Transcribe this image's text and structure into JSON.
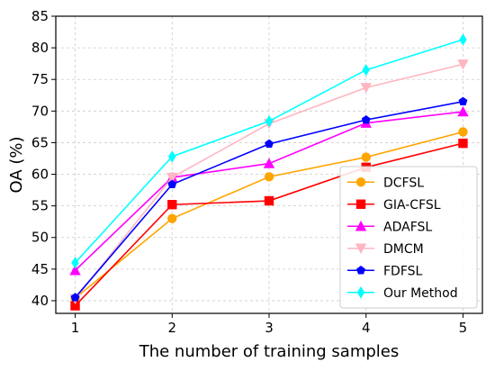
{
  "chart_data": {
    "type": "line",
    "title": "",
    "xlabel": "The number of training samples",
    "ylabel": "OA (%)",
    "x": [
      1,
      2,
      3,
      4,
      5
    ],
    "xticks": [
      "1",
      "2",
      "3",
      "4",
      "5"
    ],
    "yticks": [
      "40",
      "45",
      "50",
      "55",
      "60",
      "65",
      "70",
      "75",
      "80",
      "85"
    ],
    "xlim": [
      0.8,
      5.2
    ],
    "ylim": [
      38,
      85
    ],
    "grid": true,
    "legend_position": "bottom-right",
    "series": [
      {
        "name": "DCFSL",
        "values": [
          40.4,
          53.0,
          59.6,
          62.7,
          66.7
        ],
        "color": "#ffa500",
        "marker": "circle"
      },
      {
        "name": "GIA-CFSL",
        "values": [
          39.2,
          55.2,
          55.8,
          61.1,
          64.9
        ],
        "color": "#ff0000",
        "marker": "square"
      },
      {
        "name": "ADAFSL",
        "values": [
          44.8,
          59.5,
          61.7,
          68.1,
          69.9
        ],
        "color": "#ff00ff",
        "marker": "triangle-up"
      },
      {
        "name": "DMCM",
        "values": [
          40.3,
          59.5,
          68.0,
          73.7,
          77.4
        ],
        "color": "#ffb6c1",
        "marker": "triangle-down"
      },
      {
        "name": "FDFSL",
        "values": [
          40.5,
          58.4,
          64.8,
          68.6,
          71.5
        ],
        "color": "#0000ff",
        "marker": "pentagon"
      },
      {
        "name": "Our Method",
        "values": [
          46.0,
          62.8,
          68.4,
          76.5,
          81.3
        ],
        "color": "#00ffff",
        "marker": "diamond"
      }
    ]
  }
}
